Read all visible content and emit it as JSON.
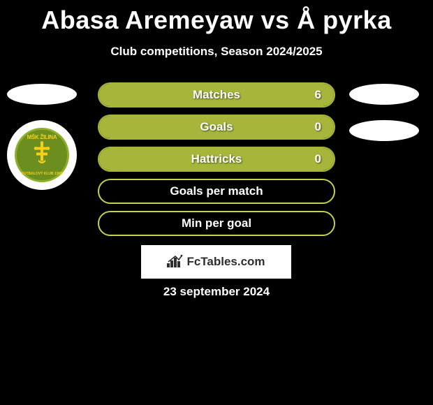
{
  "title": "Abasa Aremeyaw vs Å pyrka",
  "subtitle": "Club competitions, Season 2024/2025",
  "date": "23 september 2024",
  "club_badge": {
    "top_text": "MŠK ŽILINA",
    "bottom_text": "FUTBALOVÝ KLUB 1908",
    "bg_color": "#6b8e1e",
    "border_color": "#8fae2a",
    "accent_color": "#f4d01a"
  },
  "stats": [
    {
      "label": "Matches",
      "value": "6",
      "fill_pct": 100,
      "fill_color": "#a7b63b",
      "border_color": "#a7b63b"
    },
    {
      "label": "Goals",
      "value": "0",
      "fill_pct": 100,
      "fill_color": "#a7b63b",
      "border_color": "#a7b63b"
    },
    {
      "label": "Hattricks",
      "value": "0",
      "fill_pct": 100,
      "fill_color": "#a7b63b",
      "border_color": "#a7b63b"
    },
    {
      "label": "Goals per match",
      "value": "",
      "fill_pct": 0,
      "fill_color": "#a7b63b",
      "border_color": "#c3d14f"
    },
    {
      "label": "Min per goal",
      "value": "",
      "fill_pct": 0,
      "fill_color": "#a7b63b",
      "border_color": "#c3d14f"
    }
  ],
  "fctables": {
    "text": "FcTables.com"
  },
  "colors": {
    "background": "#000000",
    "text": "#ffffff"
  }
}
